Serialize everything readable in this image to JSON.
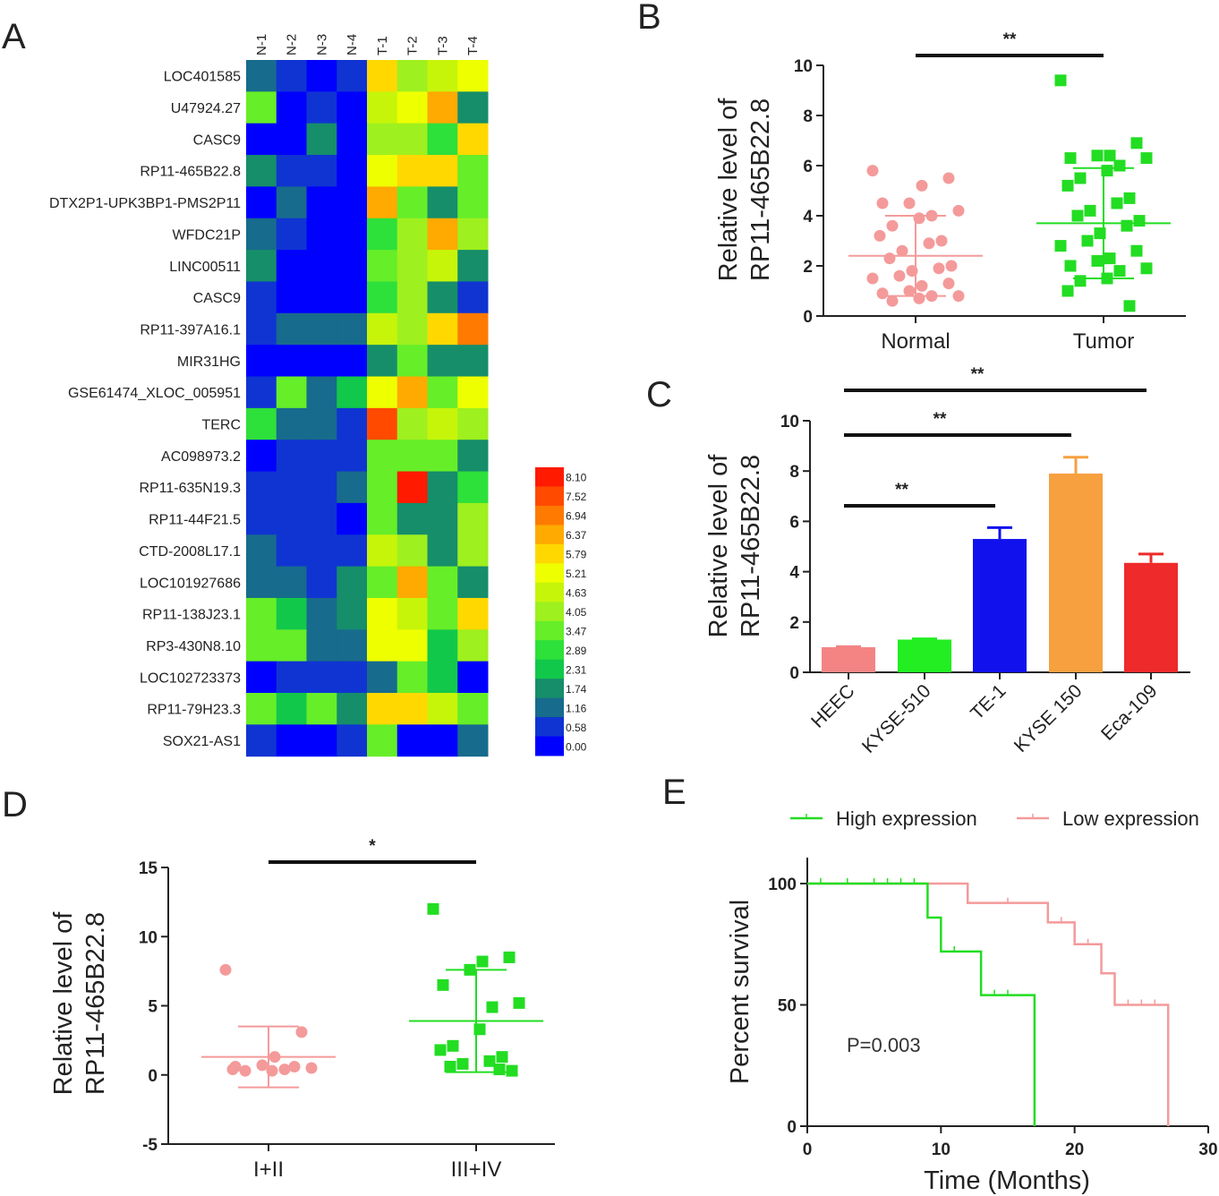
{
  "panel_labels": [
    "A",
    "B",
    "C",
    "D",
    "E"
  ],
  "chart_data": [
    {
      "panel": "A",
      "type": "heatmap",
      "columns": [
        "N-1",
        "N-2",
        "N-3",
        "N-4",
        "T-1",
        "T-2",
        "T-3",
        "T-4"
      ],
      "rows": [
        "LOC401585",
        "U47924.27",
        "CASC9",
        "RP11-465B22.8",
        "DTX2P1-UPK3BP1-PMS2P11",
        "WFDC21P",
        "LINC00511",
        "CASC9",
        "RP11-397A16.1",
        "MIR31HG",
        "GSE61474_XLOC_005951",
        "TERC",
        "AC098973.2",
        "RP11-635N19.3",
        "RP11-44F21.5",
        "CTD-2008L17.1",
        "LOC101927686",
        "RP11-138J23.1",
        "RP3-430N8.10",
        "LOC102723373",
        "RP11-79H23.3",
        "SOX21-AS1"
      ],
      "values": [
        [
          1.16,
          0.58,
          0.0,
          0.58,
          5.79,
          4.05,
          4.63,
          5.21
        ],
        [
          3.47,
          0.0,
          0.58,
          0.0,
          4.63,
          5.21,
          6.37,
          1.74
        ],
        [
          0.0,
          0.0,
          1.74,
          0.0,
          4.05,
          4.05,
          2.89,
          5.79
        ],
        [
          1.74,
          0.58,
          0.58,
          0.0,
          5.21,
          5.79,
          5.79,
          3.47
        ],
        [
          0.0,
          1.16,
          0.0,
          0.0,
          6.37,
          3.47,
          1.74,
          3.47
        ],
        [
          1.16,
          0.58,
          0.0,
          0.0,
          2.89,
          4.05,
          6.37,
          4.05
        ],
        [
          1.74,
          0.0,
          0.0,
          0.0,
          3.47,
          4.05,
          4.63,
          1.74
        ],
        [
          0.58,
          0.0,
          0.0,
          0.0,
          2.89,
          4.05,
          1.74,
          0.58
        ],
        [
          0.58,
          1.16,
          1.16,
          1.16,
          4.63,
          4.05,
          5.79,
          6.94
        ],
        [
          0.0,
          0.0,
          0.0,
          0.0,
          1.74,
          3.47,
          1.74,
          1.74
        ],
        [
          0.58,
          3.47,
          1.16,
          2.31,
          5.21,
          6.37,
          3.47,
          5.21
        ],
        [
          2.89,
          1.16,
          1.16,
          0.58,
          7.52,
          4.05,
          4.63,
          4.05
        ],
        [
          0.0,
          0.58,
          0.58,
          0.58,
          3.47,
          3.47,
          3.47,
          1.74
        ],
        [
          0.58,
          0.58,
          0.58,
          1.16,
          3.47,
          8.1,
          1.74,
          2.89
        ],
        [
          0.58,
          0.58,
          0.58,
          0.0,
          3.47,
          1.74,
          1.74,
          4.05
        ],
        [
          1.16,
          0.58,
          0.58,
          0.58,
          4.63,
          4.05,
          1.74,
          4.05
        ],
        [
          1.16,
          1.16,
          0.58,
          1.74,
          3.47,
          6.37,
          3.47,
          1.74
        ],
        [
          3.47,
          2.31,
          1.16,
          1.74,
          5.21,
          4.63,
          3.47,
          5.79
        ],
        [
          3.47,
          3.47,
          1.16,
          1.16,
          5.21,
          5.21,
          2.31,
          4.05
        ],
        [
          0.0,
          0.58,
          0.58,
          0.58,
          1.16,
          3.47,
          2.31,
          0.0
        ],
        [
          3.47,
          2.31,
          3.47,
          1.74,
          5.79,
          5.79,
          4.63,
          3.47
        ],
        [
          0.58,
          0.0,
          0.0,
          0.58,
          3.47,
          0.0,
          0.0,
          1.16
        ]
      ],
      "scale_ticks": [
        "8.10",
        "7.52",
        "6.94",
        "6.37",
        "5.79",
        "5.21",
        "4.63",
        "4.05",
        "3.47",
        "2.89",
        "2.31",
        "1.74",
        "1.16",
        "0.58",
        "0.00"
      ],
      "colors": [
        "#ff1a00",
        "#ff4a00",
        "#ff7a00",
        "#ffaa00",
        "#ffd800",
        "#eeff00",
        "#c6f50a",
        "#9ef01e",
        "#66ee28",
        "#2ee03a",
        "#12c84a",
        "#168e6a",
        "#176b8c",
        "#1034d2",
        "#0000ff"
      ]
    },
    {
      "panel": "B",
      "type": "scatter",
      "ylabel": "Relative  level of RP11-465B22.8",
      "ylabel_lines": [
        "Relative  level of",
        "RP11-465B22.8"
      ],
      "ylim": [
        0,
        10
      ],
      "yticks": [
        "0",
        "2",
        "4",
        "6",
        "8",
        "10"
      ],
      "categories": [
        "Normal",
        "Tumor"
      ],
      "series": [
        {
          "name": "Normal",
          "color": "#f49a9a",
          "marker": "circle",
          "mean": 2.4,
          "sd_low": 0.8,
          "sd_high": 4.0,
          "values": [
            5.8,
            5.5,
            5.2,
            4.5,
            4.5,
            4.2,
            4.0,
            3.9,
            3.6,
            3.2,
            3.0,
            2.9,
            2.6,
            2.3,
            2.0,
            1.9,
            1.8,
            1.6,
            1.5,
            1.3,
            1.2,
            1.0,
            0.9,
            0.8,
            0.8,
            0.7,
            0.6
          ]
        },
        {
          "name": "Tumor",
          "color": "#22dd22",
          "marker": "square",
          "mean": 3.7,
          "sd_low": 1.5,
          "sd_high": 5.9,
          "values": [
            9.4,
            6.9,
            6.4,
            6.4,
            6.3,
            6.3,
            6.0,
            5.8,
            5.5,
            5.2,
            4.7,
            4.5,
            4.2,
            4.0,
            3.8,
            3.6,
            3.3,
            3.0,
            2.8,
            2.6,
            2.3,
            2.2,
            2.0,
            1.9,
            1.8,
            1.5,
            1.4,
            1.0,
            0.4
          ]
        }
      ],
      "significance": [
        {
          "from": "Normal",
          "to": "Tumor",
          "label": "**"
        }
      ]
    },
    {
      "panel": "C",
      "type": "bar",
      "ylabel": "Relative  level of RP11-465B22.8",
      "ylabel_lines": [
        "Relative  level of",
        "RP11-465B22.8"
      ],
      "ylim": [
        0,
        10
      ],
      "yticks": [
        "0",
        "2",
        "4",
        "6",
        "8",
        "10"
      ],
      "categories": [
        "HEEC",
        "KYSE-510",
        "TE-1",
        "KYSE 150",
        "Eca-109"
      ],
      "values": [
        1.0,
        1.3,
        5.3,
        7.9,
        4.35
      ],
      "errors": [
        0.02,
        0.03,
        0.45,
        0.65,
        0.35
      ],
      "colors": [
        "#f48484",
        "#22ee22",
        "#1111ee",
        "#f7a040",
        "#ee2a2a"
      ],
      "significance": [
        {
          "from": "HEEC",
          "to": "TE-1",
          "label": "**"
        },
        {
          "from": "HEEC",
          "to": "KYSE 150",
          "label": "**"
        },
        {
          "from": "HEEC",
          "to": "Eca-109",
          "label": "**"
        }
      ]
    },
    {
      "panel": "D",
      "type": "scatter",
      "ylabel": "Relative  level of RP11-465B22.8",
      "ylabel_lines": [
        "Relative  level of",
        "RP11-465B22.8"
      ],
      "ylim": [
        -5,
        15
      ],
      "yticks": [
        "-5",
        "0",
        "5",
        "10",
        "15"
      ],
      "categories": [
        "I+II",
        "III+IV"
      ],
      "series": [
        {
          "name": "I+II",
          "color": "#f49a9a",
          "marker": "circle",
          "mean": 1.3,
          "sd_low": -0.9,
          "sd_high": 3.5,
          "values": [
            7.6,
            3.1,
            1.3,
            0.7,
            0.6,
            0.5,
            0.4,
            0.3,
            0.3,
            0.4,
            0.6
          ]
        },
        {
          "name": "III+IV",
          "color": "#22dd22",
          "marker": "square",
          "mean": 3.9,
          "sd_low": 0.2,
          "sd_high": 7.6,
          "values": [
            12.0,
            8.5,
            8.2,
            7.6,
            6.5,
            5.2,
            4.9,
            3.3,
            2.1,
            1.8,
            1.3,
            1.0,
            0.8,
            0.6,
            0.3,
            0.4
          ]
        }
      ],
      "significance": [
        {
          "from": "I+II",
          "to": "III+IV",
          "label": "*"
        }
      ]
    },
    {
      "panel": "E",
      "type": "line",
      "subtype": "kaplan-meier",
      "xlabel": "Time (Months)",
      "ylabel": "Percent survival",
      "xlim": [
        0,
        30
      ],
      "ylim": [
        0,
        100
      ],
      "xticks": [
        "0",
        "10",
        "20",
        "30"
      ],
      "yticks": [
        "0",
        "50",
        "100"
      ],
      "annotation": "P=0.003",
      "series": [
        {
          "name": "High expression",
          "color": "#22dd22",
          "x": [
            0,
            9,
            9,
            10,
            10,
            13,
            13,
            17,
            17
          ],
          "y": [
            100,
            100,
            86,
            86,
            72,
            72,
            54,
            54,
            0
          ],
          "censored": [
            [
              1,
              100
            ],
            [
              3,
              100
            ],
            [
              5,
              100
            ],
            [
              6,
              100
            ],
            [
              7,
              100
            ],
            [
              8,
              100
            ],
            [
              11,
              72
            ],
            [
              14,
              54
            ],
            [
              15,
              54
            ]
          ]
        },
        {
          "name": "Low expression",
          "color": "#f49a9a",
          "x": [
            0,
            12,
            12,
            18,
            18,
            20,
            20,
            22,
            22,
            23,
            23,
            27,
            27
          ],
          "y": [
            100,
            100,
            92,
            92,
            84,
            84,
            75,
            75,
            63,
            63,
            50,
            50,
            0
          ],
          "censored": [
            [
              15,
              92
            ],
            [
              19,
              84
            ],
            [
              21,
              75
            ],
            [
              24,
              50
            ],
            [
              25,
              50
            ],
            [
              26,
              50
            ]
          ]
        }
      ],
      "legend": [
        "High expression",
        "Low expression"
      ]
    }
  ]
}
